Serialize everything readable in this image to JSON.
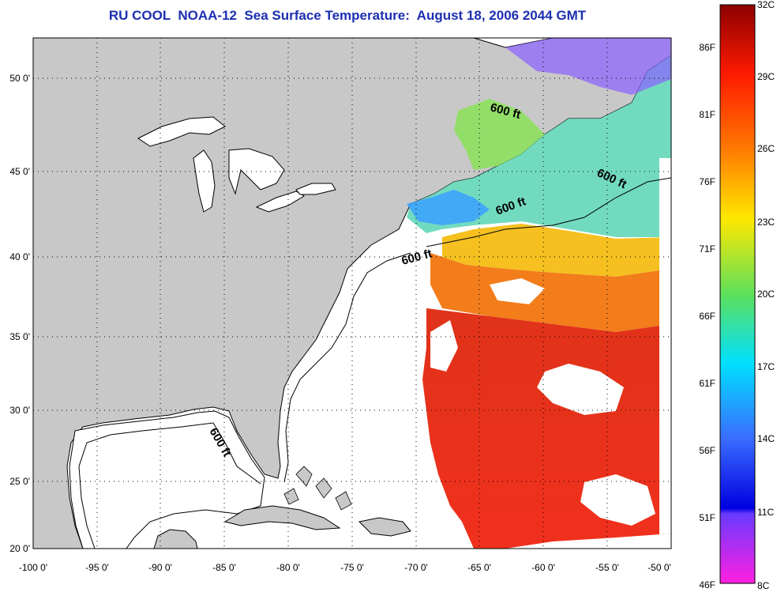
{
  "title": "RU COOL  NOAA-12  Sea Surface Temperature:  August 18, 2006 2044 GMT",
  "map": {
    "lon_ticks": [
      "-100 0'",
      "-95 0'",
      "-90 0'",
      "-85 0'",
      "-80 0'",
      "-75 0'",
      "-70 0'",
      "-65 0'",
      "-60 0'",
      "-55 0'",
      "-50 0'"
    ],
    "lat_ticks": [
      "50 0'",
      "45 0'",
      "40 0'",
      "35 0'",
      "30 0'",
      "25 0'",
      "20 0'"
    ],
    "contour_labels": [
      "600 ft",
      "600 ft",
      "600 ft",
      "600 ft",
      "600 ft"
    ],
    "colors": {
      "land": "#c8c8c8",
      "water": "#ffffff",
      "title": "#1c2fb0"
    }
  },
  "colorbar": {
    "celsius_labels": [
      "32C",
      "29C",
      "26C",
      "23C",
      "20C",
      "17C",
      "14C",
      "11C",
      "8C"
    ],
    "fahrenheit_labels": [
      "86F",
      "81F",
      "76F",
      "71F",
      "66F",
      "61F",
      "56F",
      "51F",
      "46F"
    ]
  }
}
